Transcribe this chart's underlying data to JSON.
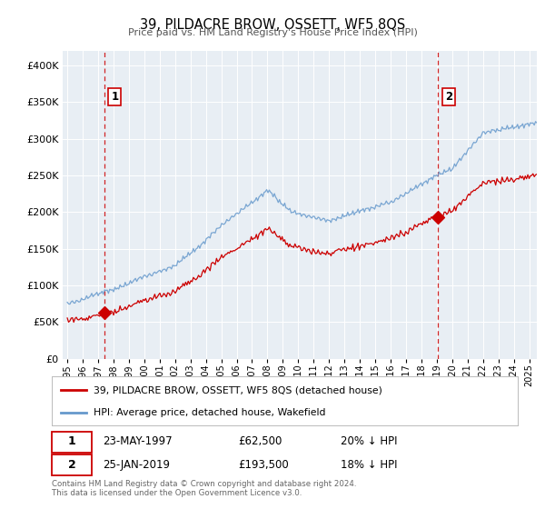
{
  "title": "39, PILDACRE BROW, OSSETT, WF5 8QS",
  "subtitle": "Price paid vs. HM Land Registry's House Price Index (HPI)",
  "legend_line1": "39, PILDACRE BROW, OSSETT, WF5 8QS (detached house)",
  "legend_line2": "HPI: Average price, detached house, Wakefield",
  "sale1_date": "23-MAY-1997",
  "sale1_price": 62500,
  "sale1_label": "20% ↓ HPI",
  "sale2_date": "25-JAN-2019",
  "sale2_price": 193500,
  "sale2_label": "18% ↓ HPI",
  "footnote1": "Contains HM Land Registry data © Crown copyright and database right 2024.",
  "footnote2": "This data is licensed under the Open Government Licence v3.0.",
  "sale1_x": 1997.39,
  "sale2_x": 2019.07,
  "property_color": "#cc0000",
  "hpi_color": "#6699cc",
  "vline_color": "#cc0000",
  "background_color": "#e8eef4",
  "ylim_max": 420000,
  "xlim_min": 1994.7,
  "xlim_max": 2025.5,
  "xtick_start": 1995,
  "xtick_end": 2025
}
